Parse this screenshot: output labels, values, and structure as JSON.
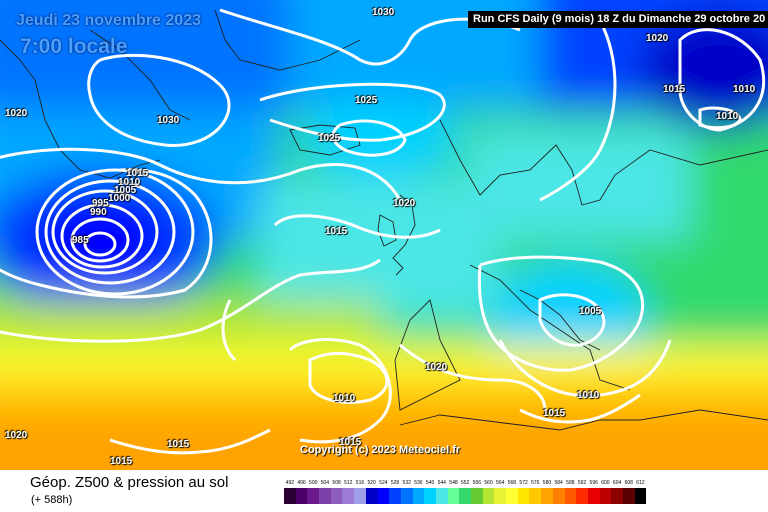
{
  "header": {
    "date": "Jeudi 23 novembre 2023",
    "time": "7:00 locale",
    "run": "Run CFS Daily (9 mois) 18 Z du Dimanche 29 octobre 20"
  },
  "copyright": "Copyright (c) 2023 Meteociel.fr",
  "isobar_labels": [
    "1030",
    "1020",
    "1030",
    "1025",
    "1025",
    "1020",
    "1015",
    "1010",
    "1010",
    "1015",
    "1010",
    "1005",
    "1000",
    "995",
    "990",
    "985",
    "1020",
    "1015",
    "1005",
    "1020",
    "1010",
    "1010",
    "1015",
    "1020",
    "1015",
    "1015",
    "1015"
  ],
  "legend": {
    "title": "Géop. Z500 & pression au sol",
    "subtitle": "(+ 588h)",
    "scale_values": [
      "492",
      "496",
      "500",
      "504",
      "508",
      "512",
      "516",
      "520",
      "524",
      "528",
      "532",
      "536",
      "540",
      "544",
      "548",
      "552",
      "556",
      "560",
      "564",
      "568",
      "572",
      "576",
      "580",
      "584",
      "588",
      "592",
      "596",
      "600",
      "604",
      "608",
      "612"
    ],
    "scale_colors": [
      "#2b0033",
      "#4a0068",
      "#6a1a8c",
      "#7d3fa8",
      "#8e5cbf",
      "#9c7bd6",
      "#9d9fe8",
      "#0000c8",
      "#0000ff",
      "#0042ff",
      "#0073ff",
      "#00a8ff",
      "#00d2ff",
      "#4be6e6",
      "#66ff99",
      "#33d96d",
      "#66cc33",
      "#b3e633",
      "#e6f233",
      "#ffff33",
      "#ffe600",
      "#ffc800",
      "#ffa300",
      "#ff8000",
      "#ff5a00",
      "#ff2a00",
      "#e60000",
      "#bf0000",
      "#8c0000",
      "#5a0000",
      "#000000"
    ]
  }
}
